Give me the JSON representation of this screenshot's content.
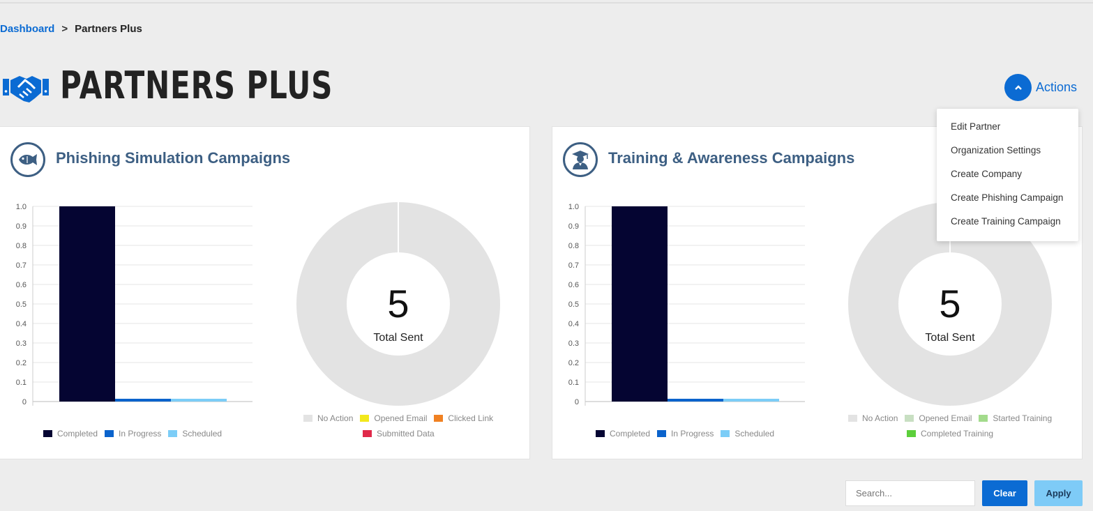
{
  "breadcrumb": {
    "root": "Dashboard",
    "separator": ">",
    "current": "Partners Plus"
  },
  "page": {
    "title": "PARTNERS PLUS",
    "icon": "handshake-icon"
  },
  "actions": {
    "label": "Actions",
    "icon": "chevron-up-icon"
  },
  "dropdown": {
    "items": [
      "Edit Partner",
      "Organization Settings",
      "Create Company",
      "Create Phishing Campaign",
      "Create Training Campaign"
    ]
  },
  "phishing": {
    "title": "Phishing Simulation Campaigns",
    "icon": "fish-icon",
    "chart_data": {
      "type": "bar",
      "categories": [
        "Completed",
        "In Progress",
        "Scheduled"
      ],
      "values": [
        1,
        0,
        0
      ],
      "ylim": [
        0,
        1
      ],
      "yticks": [
        "1.0",
        "0.9",
        "0.8",
        "0.7",
        "0.6",
        "0.5",
        "0.4",
        "0.3",
        "0.2",
        "0.1",
        "0"
      ],
      "colors": [
        "#050532",
        "#0b63cc",
        "#7ccdf7"
      ]
    },
    "donut": {
      "value": "5",
      "label": "Total Sent",
      "legend": [
        {
          "name": "No Action",
          "color": "#e3e3e3"
        },
        {
          "name": "Opened Email",
          "color": "#f2e81c"
        },
        {
          "name": "Clicked Link",
          "color": "#f08122"
        },
        {
          "name": "Submitted Data",
          "color": "#e0294a"
        }
      ],
      "values": [
        5,
        0,
        0,
        0
      ]
    }
  },
  "training": {
    "title": "Training & Awareness Campaigns",
    "icon": "graduate-icon",
    "chart_data": {
      "type": "bar",
      "categories": [
        "Completed",
        "In Progress",
        "Scheduled"
      ],
      "values": [
        1,
        0,
        0
      ],
      "ylim": [
        0,
        1
      ],
      "yticks": [
        "1.0",
        "0.9",
        "0.8",
        "0.7",
        "0.6",
        "0.5",
        "0.4",
        "0.3",
        "0.2",
        "0.1",
        "0"
      ],
      "colors": [
        "#050532",
        "#0b63cc",
        "#7ccdf7"
      ]
    },
    "donut": {
      "value": "5",
      "label": "Total Sent",
      "legend": [
        {
          "name": "No Action",
          "color": "#e3e3e3"
        },
        {
          "name": "Opened Email",
          "color": "#c8dfc2"
        },
        {
          "name": "Started Training",
          "color": "#a3db8c"
        },
        {
          "name": "Completed Training",
          "color": "#5ccf3b"
        }
      ],
      "values": [
        5,
        0,
        0,
        0
      ]
    }
  },
  "filter": {
    "search_placeholder": "Search...",
    "clear_label": "Clear",
    "apply_label": "Apply"
  }
}
